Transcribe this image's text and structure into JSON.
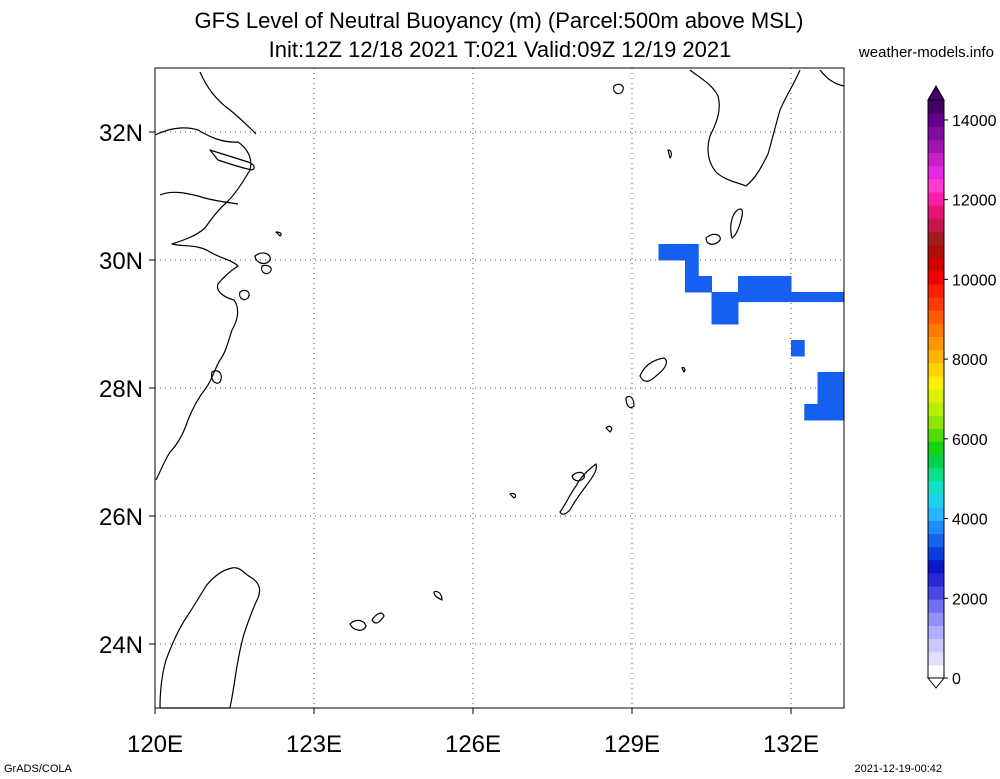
{
  "header": {
    "title_line1": "GFS Level of Neutral Buoyancy (m) (Parcel:500m above MSL)",
    "title_line2": "Init:12Z 12/18 2021 T:021 Valid:09Z 12/19 2021",
    "site": "weather-models.info"
  },
  "footer": {
    "left": "GrADS/COLA",
    "right": "2021-12-19-00:42"
  },
  "map": {
    "lon_range": [
      120,
      133
    ],
    "lat_range": [
      23,
      33
    ],
    "lon_labels": [
      "120E",
      "123E",
      "126E",
      "129E",
      "132E"
    ],
    "lat_labels": [
      "24N",
      "26N",
      "28N",
      "30N",
      "32N"
    ],
    "shaded_color": "#1560f0",
    "shaded_level_range_m": [
      2000,
      2500
    ]
  },
  "colorbar": {
    "labels": [
      "0",
      "2000",
      "4000",
      "6000",
      "8000",
      "10000",
      "12000",
      "14000"
    ],
    "colors": [
      "#ffffff",
      "#e0e0ff",
      "#c8c8ff",
      "#b0b0ff",
      "#9090f8",
      "#7070f0",
      "#4848e8",
      "#2828d8",
      "#0a18c8",
      "#0a3ce0",
      "#1464f0",
      "#1e8cf8",
      "#28b4ff",
      "#1ed2f0",
      "#14e0c8",
      "#0ae08c",
      "#00d250",
      "#14d214",
      "#50dc0a",
      "#8ce600",
      "#b4f000",
      "#dcf000",
      "#fff000",
      "#ffd200",
      "#ffb400",
      "#ff9600",
      "#ff7800",
      "#ff5a00",
      "#ff3c00",
      "#ff1e00",
      "#f00000",
      "#d20000",
      "#b40a0a",
      "#a01e1e",
      "#c8144b",
      "#e61478",
      "#ff1eaa",
      "#ff3cd2",
      "#e628e6",
      "#c81ec8",
      "#a014b4",
      "#820aa0",
      "#64008c",
      "#460064"
    ]
  }
}
